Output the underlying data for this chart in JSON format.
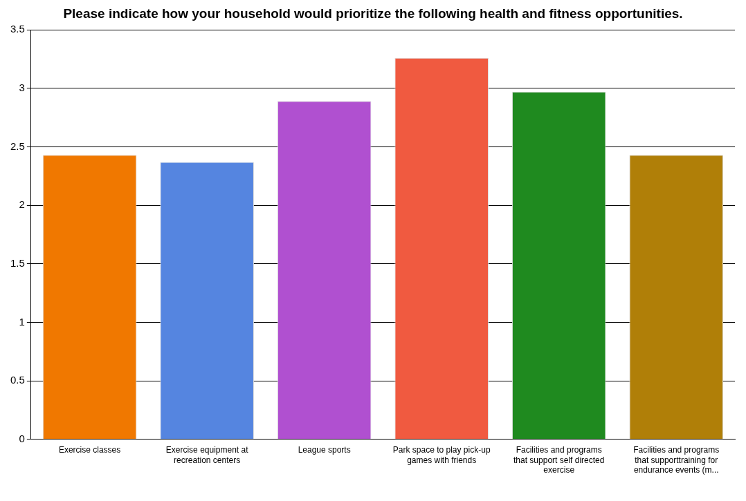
{
  "chart_data": {
    "type": "bar",
    "title": "Please indicate how your household would prioritize the following health and fitness opportunities.",
    "categories": [
      "Exercise classes",
      "Exercise equipment at recreation centers",
      "League sports",
      "Park space to play pick-up games with friends",
      "Facilities and programs that support self directed exercise",
      "Facilities and programs that supporttraining for endurance events (m..."
    ],
    "values": [
      2.43,
      2.37,
      2.89,
      3.26,
      2.97,
      2.43
    ],
    "colors": [
      "#f07800",
      "#5585e0",
      "#b050d0",
      "#f05a40",
      "#1f8a1f",
      "#b07f08"
    ],
    "ylim": [
      0,
      3.5
    ],
    "yticks": [
      0,
      0.5,
      1,
      1.5,
      2,
      2.5,
      3,
      3.5
    ],
    "grid": "y",
    "legend": false
  }
}
